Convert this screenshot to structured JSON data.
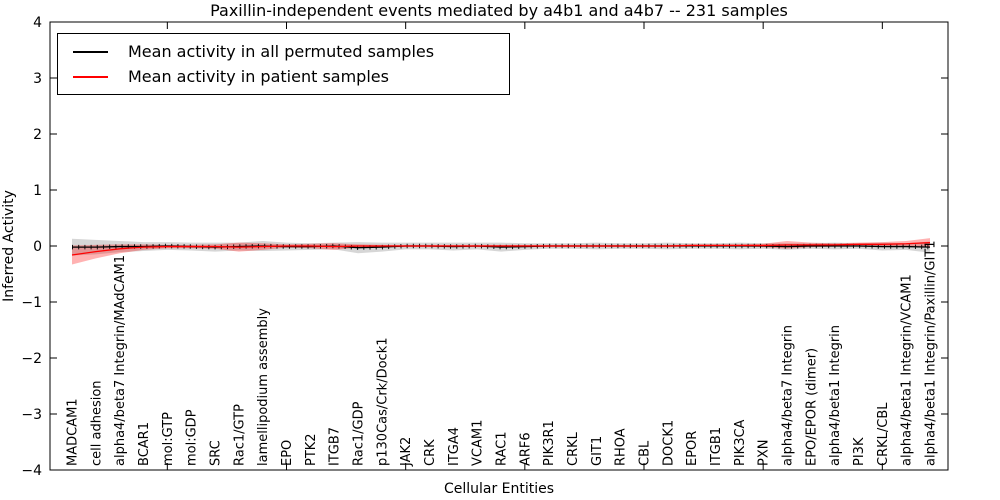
{
  "chart_data": {
    "type": "line",
    "title": "Paxillin-independent events mediated by a4b1 and a4b7 -- 231 samples",
    "xlabel": "Cellular Entities",
    "ylabel": "Inferred Activity",
    "ylim": [
      -4,
      4
    ],
    "yticks": [
      4,
      3,
      2,
      1,
      0,
      -1,
      -2,
      -3,
      -4
    ],
    "grid": false,
    "legend_position": "upper-left",
    "xticks_at_category_index": [
      4,
      9,
      14,
      19,
      24,
      29,
      34
    ],
    "categories": [
      "MADCAM1",
      "cell adhesion",
      "alpha4/beta7 Integrin/MAdCAM1",
      "BCAR1",
      "mol:GTP",
      "mol:GDP",
      "SRC",
      "Rac1/GTP",
      "lamellipodium assembly",
      "EPO",
      "PTK2",
      "ITGB7",
      "Rac1/GDP",
      "p130Cas/Crk/Dock1",
      "JAK2",
      "CRK",
      "ITGA4",
      "VCAM1",
      "RAC1",
      "ARF6",
      "PIK3R1",
      "CRKL",
      "GIT1",
      "RHOA",
      "CBL",
      "DOCK1",
      "EPOR",
      "ITGB1",
      "PIK3CA",
      "PXN",
      "alpha4/beta7 Integrin",
      "EPO/EPOR (dimer)",
      "alpha4/beta1 Integrin",
      "PI3K",
      "CRKL/CBL",
      "alpha4/beta1 Integrin/VCAM1",
      "alpha4/beta1 Integrin/Paxillin/GIT1"
    ],
    "series": [
      {
        "name": "Mean activity in all permuted samples",
        "color": "#000000",
        "band_color": "rgba(0,0,0,0.16)",
        "marker": "tick",
        "values": [
          -0.02,
          -0.02,
          -0.01,
          -0.01,
          0,
          -0.01,
          -0.02,
          -0.01,
          0,
          -0.01,
          -0.01,
          0,
          -0.03,
          -0.02,
          0,
          0,
          -0.01,
          0,
          -0.02,
          -0.01,
          0,
          0,
          0,
          0,
          0,
          0,
          0,
          0,
          0,
          0,
          -0.01,
          0,
          0,
          0,
          -0.01,
          -0.01,
          -0.02
        ],
        "band_halfwidth": [
          0.15,
          0.13,
          0.1,
          0.08,
          0.07,
          0.07,
          0.08,
          0.07,
          0.09,
          0.07,
          0.06,
          0.06,
          0.1,
          0.08,
          0.06,
          0.06,
          0.07,
          0.06,
          0.08,
          0.06,
          0.05,
          0.05,
          0.06,
          0.05,
          0.05,
          0.06,
          0.05,
          0.05,
          0.06,
          0.05,
          0.06,
          0.05,
          0.06,
          0.05,
          0.07,
          0.06,
          0.1
        ]
      },
      {
        "name": "Mean activity in patient samples",
        "color": "#ff0000",
        "band_color": "rgba(255,0,0,0.30)",
        "marker": "none",
        "values": [
          -0.16,
          -0.1,
          -0.05,
          -0.02,
          -0.01,
          -0.01,
          -0.01,
          -0.02,
          -0.01,
          0,
          0,
          -0.01,
          0,
          0,
          0,
          0,
          0,
          0,
          0,
          0,
          0,
          0,
          0,
          0,
          0,
          0,
          0.01,
          0.01,
          0.01,
          0.01,
          0.02,
          0.02,
          0.02,
          0.03,
          0.03,
          0.04,
          0.06
        ],
        "band_halfwidth": [
          0.17,
          0.12,
          0.08,
          0.05,
          0.03,
          0.03,
          0.04,
          0.08,
          0.06,
          0.03,
          0.04,
          0.06,
          0.03,
          0.02,
          0.02,
          0.02,
          0.02,
          0.02,
          0.02,
          0.02,
          0.02,
          0.02,
          0.02,
          0.02,
          0.02,
          0.02,
          0.02,
          0.02,
          0.02,
          0.03,
          0.07,
          0.04,
          0.03,
          0.03,
          0.04,
          0.05,
          0.08
        ]
      }
    ]
  }
}
